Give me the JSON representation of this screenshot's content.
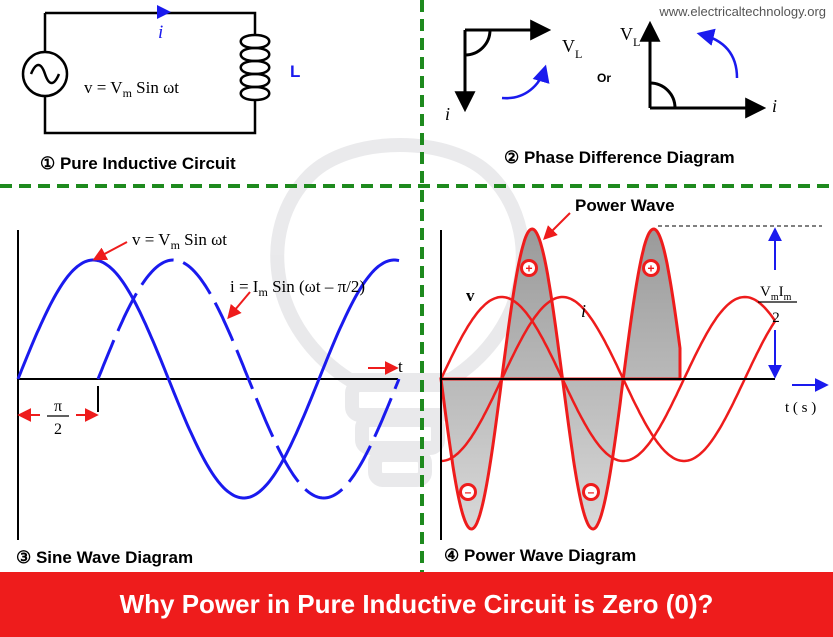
{
  "watermark": "www.electricaltechnology.org",
  "colors": {
    "blue": "#1a1aee",
    "red": "#ee1c1c",
    "green": "#1e8a1e",
    "black": "#000000"
  },
  "panel1": {
    "current_label": "i",
    "inductor_label": "L",
    "voltage_eq_prefix": "v = V",
    "voltage_eq_sub": "m",
    "voltage_eq_suffix": " Sin ωt",
    "caption": "① Pure Inductive Circuit"
  },
  "panel2": {
    "left_vl": "V",
    "left_vl_sub": "L",
    "left_i": "i",
    "or_label": "Or",
    "right_vl": "V",
    "right_vl_sub": "L",
    "right_i": "i",
    "caption": "② Phase Difference Diagram"
  },
  "panel3": {
    "v_eq_prefix": "v = V",
    "v_eq_sub": "m",
    "v_eq_suffix": " Sin ωt",
    "i_eq_prefix": "i = I",
    "i_eq_sub": "m",
    "i_eq_suffix": " Sin (ωt – π/2)",
    "t_label": "t",
    "pi_num": "π",
    "pi_den": "2",
    "caption": "③ Sine Wave Diagram"
  },
  "panel4": {
    "power_wave_label": "Power Wave",
    "v_label": "v",
    "i_label": "i",
    "vi_num_a": "V",
    "vi_num_a_sub": "m",
    "vi_num_b": "I",
    "vi_num_b_sub": "m",
    "vi_den": "2",
    "t_label": "t ( s )",
    "plus": "+",
    "minus": "–",
    "caption": "④ Power Wave Diagram"
  },
  "banner": "Why Power in Pure Inductive Circuit is Zero (0)?"
}
